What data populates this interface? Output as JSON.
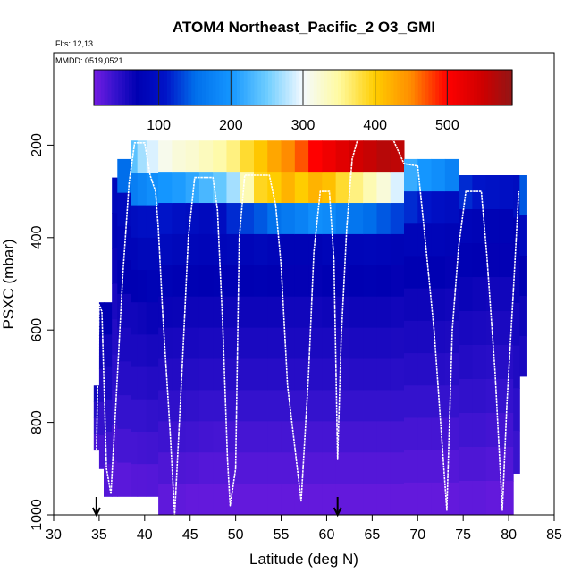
{
  "chart_data": {
    "type": "heatmap",
    "title": "ATOM4 Northeast_Pacific_2 O3_GMI",
    "flights_note": "Flts: 12,13",
    "dates_note": "MMDD: 0519,0521",
    "xlabel": "Latitude (deg N)",
    "ylabel": "PSXC (mbar)",
    "xlim": [
      30,
      85
    ],
    "ylim": [
      1000,
      0
    ],
    "x_ticks": [
      30,
      35,
      40,
      45,
      50,
      55,
      60,
      65,
      70,
      75,
      80,
      85
    ],
    "x_tick_labels": [
      "30",
      "35",
      "40",
      "45",
      "50",
      "55",
      "60",
      "65",
      "70",
      "75",
      "80",
      "85"
    ],
    "y_ticks": [
      200,
      400,
      600,
      800,
      1000
    ],
    "y_tick_labels": [
      "200",
      "400",
      "600",
      "800",
      "1000"
    ],
    "colorbar": {
      "range": [
        10,
        590
      ],
      "ticks": [
        100,
        200,
        300,
        400,
        500
      ],
      "tick_labels": [
        "100",
        "200",
        "300",
        "400",
        "500"
      ]
    },
    "markers_lat": [
      34.7,
      61.2
    ],
    "profile": [
      [
        34.7,
        860
      ],
      [
        35.0,
        545
      ],
      [
        35.3,
        560
      ],
      [
        35.8,
        900
      ],
      [
        36.3,
        955
      ],
      [
        37.0,
        700
      ],
      [
        37.6,
        480
      ],
      [
        38.3,
        280
      ],
      [
        38.9,
        195
      ],
      [
        40.0,
        195
      ],
      [
        40.6,
        265
      ],
      [
        41.2,
        300
      ],
      [
        41.5,
        380
      ],
      [
        42.0,
        570
      ],
      [
        42.8,
        820
      ],
      [
        43.3,
        1000
      ],
      [
        44.2,
        650
      ],
      [
        44.8,
        400
      ],
      [
        45.5,
        270
      ],
      [
        47.5,
        270
      ],
      [
        48.0,
        340
      ],
      [
        48.6,
        600
      ],
      [
        49.1,
        880
      ],
      [
        49.4,
        980
      ],
      [
        50.0,
        900
      ],
      [
        50.4,
        400
      ],
      [
        51.0,
        265
      ],
      [
        53.7,
        265
      ],
      [
        54.4,
        330
      ],
      [
        55.0,
        460
      ],
      [
        55.7,
        720
      ],
      [
        57.2,
        970
      ],
      [
        58.0,
        700
      ],
      [
        58.6,
        430
      ],
      [
        59.3,
        300
      ],
      [
        60.3,
        300
      ],
      [
        60.8,
        450
      ],
      [
        61.2,
        880
      ],
      [
        61.6,
        620
      ],
      [
        62.2,
        380
      ],
      [
        62.8,
        230
      ],
      [
        63.4,
        188
      ],
      [
        67.3,
        188
      ],
      [
        68.5,
        240
      ],
      [
        70.0,
        245
      ],
      [
        70.6,
        360
      ],
      [
        71.8,
        600
      ],
      [
        73.2,
        990
      ],
      [
        73.8,
        600
      ],
      [
        74.5,
        420
      ],
      [
        75.3,
        300
      ],
      [
        77.0,
        300
      ],
      [
        77.6,
        440
      ],
      [
        78.5,
        690
      ],
      [
        79.3,
        990
      ],
      [
        79.8,
        760
      ],
      [
        80.5,
        520
      ],
      [
        81.1,
        300
      ]
    ],
    "columns": [
      {
        "x0": 34.4,
        "x1": 35.0,
        "top": 720,
        "bottom": 860,
        "values": [
          60,
          50,
          40,
          30
        ]
      },
      {
        "x0": 35.0,
        "x1": 35.5,
        "top": 540,
        "bottom": 900,
        "values": [
          70,
          60,
          50,
          40,
          30
        ]
      },
      {
        "x0": 35.5,
        "x1": 36.4,
        "top": 540,
        "bottom": 960,
        "values": [
          70,
          60,
          55,
          45,
          35,
          25
        ]
      },
      {
        "x0": 36.4,
        "x1": 37.0,
        "top": 270,
        "bottom": 960,
        "values": [
          85,
          75,
          65,
          55,
          50,
          45,
          40,
          30,
          22
        ]
      },
      {
        "x0": 37.0,
        "x1": 38.5,
        "top": 230,
        "bottom": 960,
        "values": [
          150,
          90,
          80,
          70,
          60,
          55,
          48,
          40,
          32,
          22
        ]
      },
      {
        "x0": 38.5,
        "x1": 39.2,
        "top": 190,
        "bottom": 960,
        "values": [
          240,
          170,
          95,
          80,
          70,
          60,
          55,
          48,
          40,
          32,
          24
        ]
      },
      {
        "x0": 39.2,
        "x1": 40.2,
        "top": 190,
        "bottom": 960,
        "values": [
          270,
          180,
          100,
          85,
          72,
          62,
          55,
          48,
          40,
          33,
          24
        ]
      },
      {
        "x0": 40.2,
        "x1": 41.5,
        "top": 190,
        "bottom": 960,
        "values": [
          290,
          190,
          100,
          85,
          75,
          65,
          57,
          50,
          42,
          34,
          25
        ]
      },
      {
        "x0": 41.5,
        "x1": 43.0,
        "top": 190,
        "bottom": 1000,
        "values": [
          310,
          200,
          110,
          90,
          75,
          65,
          57,
          50,
          43,
          36,
          28,
          20
        ]
      },
      {
        "x0": 43.0,
        "x1": 44.5,
        "top": 190,
        "bottom": 1000,
        "values": [
          320,
          205,
          100,
          85,
          72,
          64,
          56,
          50,
          43,
          36,
          28,
          20
        ]
      },
      {
        "x0": 44.5,
        "x1": 46.0,
        "top": 190,
        "bottom": 1000,
        "values": [
          325,
          215,
          95,
          82,
          72,
          62,
          56,
          49,
          42,
          35,
          27,
          18
        ]
      },
      {
        "x0": 46.0,
        "x1": 47.5,
        "top": 190,
        "bottom": 1000,
        "values": [
          335,
          230,
          90,
          80,
          70,
          62,
          55,
          48,
          40,
          33,
          25,
          18
        ]
      },
      {
        "x0": 47.5,
        "x1": 49.0,
        "top": 190,
        "bottom": 1000,
        "values": [
          345,
          245,
          95,
          82,
          72,
          62,
          55,
          48,
          40,
          32,
          25,
          18
        ]
      },
      {
        "x0": 49.0,
        "x1": 50.5,
        "top": 190,
        "bottom": 1000,
        "values": [
          360,
          270,
          120,
          85,
          72,
          62,
          55,
          48,
          40,
          32,
          25,
          18
        ]
      },
      {
        "x0": 50.5,
        "x1": 52.0,
        "top": 190,
        "bottom": 1000,
        "values": [
          385,
          340,
          130,
          80,
          70,
          62,
          55,
          48,
          40,
          32,
          25,
          18
        ]
      },
      {
        "x0": 52.0,
        "x1": 53.5,
        "top": 190,
        "bottom": 1000,
        "values": [
          405,
          390,
          140,
          85,
          72,
          62,
          55,
          48,
          40,
          32,
          25,
          18
        ]
      },
      {
        "x0": 53.5,
        "x1": 55.0,
        "top": 190,
        "bottom": 1000,
        "values": [
          430,
          400,
          155,
          80,
          70,
          62,
          55,
          48,
          40,
          32,
          25,
          18
        ]
      },
      {
        "x0": 55.0,
        "x1": 56.5,
        "top": 190,
        "bottom": 1000,
        "values": [
          450,
          420,
          165,
          75,
          68,
          60,
          55,
          48,
          40,
          32,
          25,
          18
        ]
      },
      {
        "x0": 56.5,
        "x1": 58.0,
        "top": 190,
        "bottom": 1000,
        "values": [
          470,
          400,
          175,
          75,
          68,
          60,
          55,
          48,
          40,
          32,
          25,
          18
        ]
      },
      {
        "x0": 58.0,
        "x1": 59.5,
        "top": 190,
        "bottom": 1000,
        "values": [
          500,
          420,
          190,
          75,
          68,
          60,
          55,
          48,
          40,
          32,
          25,
          18
        ]
      },
      {
        "x0": 59.5,
        "x1": 61.0,
        "top": 190,
        "bottom": 1000,
        "values": [
          515,
          410,
          185,
          80,
          70,
          62,
          55,
          48,
          40,
          32,
          25,
          18
        ]
      },
      {
        "x0": 61.0,
        "x1": 62.5,
        "top": 190,
        "bottom": 1000,
        "values": [
          530,
          385,
          170,
          78,
          68,
          60,
          54,
          47,
          40,
          32,
          25,
          18
        ]
      },
      {
        "x0": 62.5,
        "x1": 64.0,
        "top": 190,
        "bottom": 1000,
        "values": [
          545,
          360,
          160,
          80,
          70,
          62,
          55,
          48,
          40,
          32,
          25,
          18
        ]
      },
      {
        "x0": 64.0,
        "x1": 65.5,
        "top": 190,
        "bottom": 1000,
        "values": [
          555,
          340,
          150,
          82,
          72,
          62,
          55,
          48,
          40,
          32,
          25,
          18
        ]
      },
      {
        "x0": 65.5,
        "x1": 67.0,
        "top": 190,
        "bottom": 1000,
        "values": [
          565,
          320,
          140,
          80,
          70,
          62,
          55,
          48,
          40,
          32,
          25,
          18
        ]
      },
      {
        "x0": 67.0,
        "x1": 68.5,
        "top": 190,
        "bottom": 1000,
        "values": [
          560,
          290,
          130,
          78,
          68,
          60,
          54,
          47,
          40,
          32,
          25,
          18
        ]
      },
      {
        "x0": 68.5,
        "x1": 70.0,
        "top": 230,
        "bottom": 1000,
        "values": [
          220,
          120,
          80,
          70,
          62,
          55,
          48,
          40,
          32,
          25,
          18
        ]
      },
      {
        "x0": 70.0,
        "x1": 71.5,
        "top": 230,
        "bottom": 1000,
        "values": [
          200,
          110,
          80,
          70,
          62,
          55,
          48,
          40,
          32,
          25,
          18
        ]
      },
      {
        "x0": 71.5,
        "x1": 73.0,
        "top": 230,
        "bottom": 1000,
        "values": [
          190,
          100,
          80,
          70,
          62,
          55,
          48,
          40,
          32,
          25,
          18
        ]
      },
      {
        "x0": 73.0,
        "x1": 74.5,
        "top": 230,
        "bottom": 1000,
        "values": [
          175,
          95,
          78,
          68,
          60,
          54,
          47,
          40,
          32,
          25,
          18
        ]
      },
      {
        "x0": 74.5,
        "x1": 76.0,
        "top": 265,
        "bottom": 1000,
        "values": [
          120,
          80,
          72,
          64,
          56,
          50,
          42,
          35,
          28,
          20
        ]
      },
      {
        "x0": 76.0,
        "x1": 77.5,
        "top": 265,
        "bottom": 1000,
        "values": [
          110,
          78,
          70,
          62,
          55,
          48,
          42,
          35,
          28,
          20
        ]
      },
      {
        "x0": 77.5,
        "x1": 79.0,
        "top": 265,
        "bottom": 1000,
        "values": [
          105,
          76,
          68,
          60,
          54,
          47,
          40,
          33,
          26,
          18
        ]
      },
      {
        "x0": 79.0,
        "x1": 80.5,
        "top": 265,
        "bottom": 1000,
        "values": [
          100,
          75,
          68,
          60,
          55,
          48,
          40,
          33,
          26,
          18
        ]
      },
      {
        "x0": 80.5,
        "x1": 81.2,
        "top": 265,
        "bottom": 910,
        "values": [
          95,
          72,
          65,
          58,
          52,
          45,
          38
        ]
      },
      {
        "x0": 81.2,
        "x1": 82.0,
        "top": 265,
        "bottom": 700,
        "values": [
          140,
          90,
          70,
          62,
          55
        ]
      }
    ]
  }
}
